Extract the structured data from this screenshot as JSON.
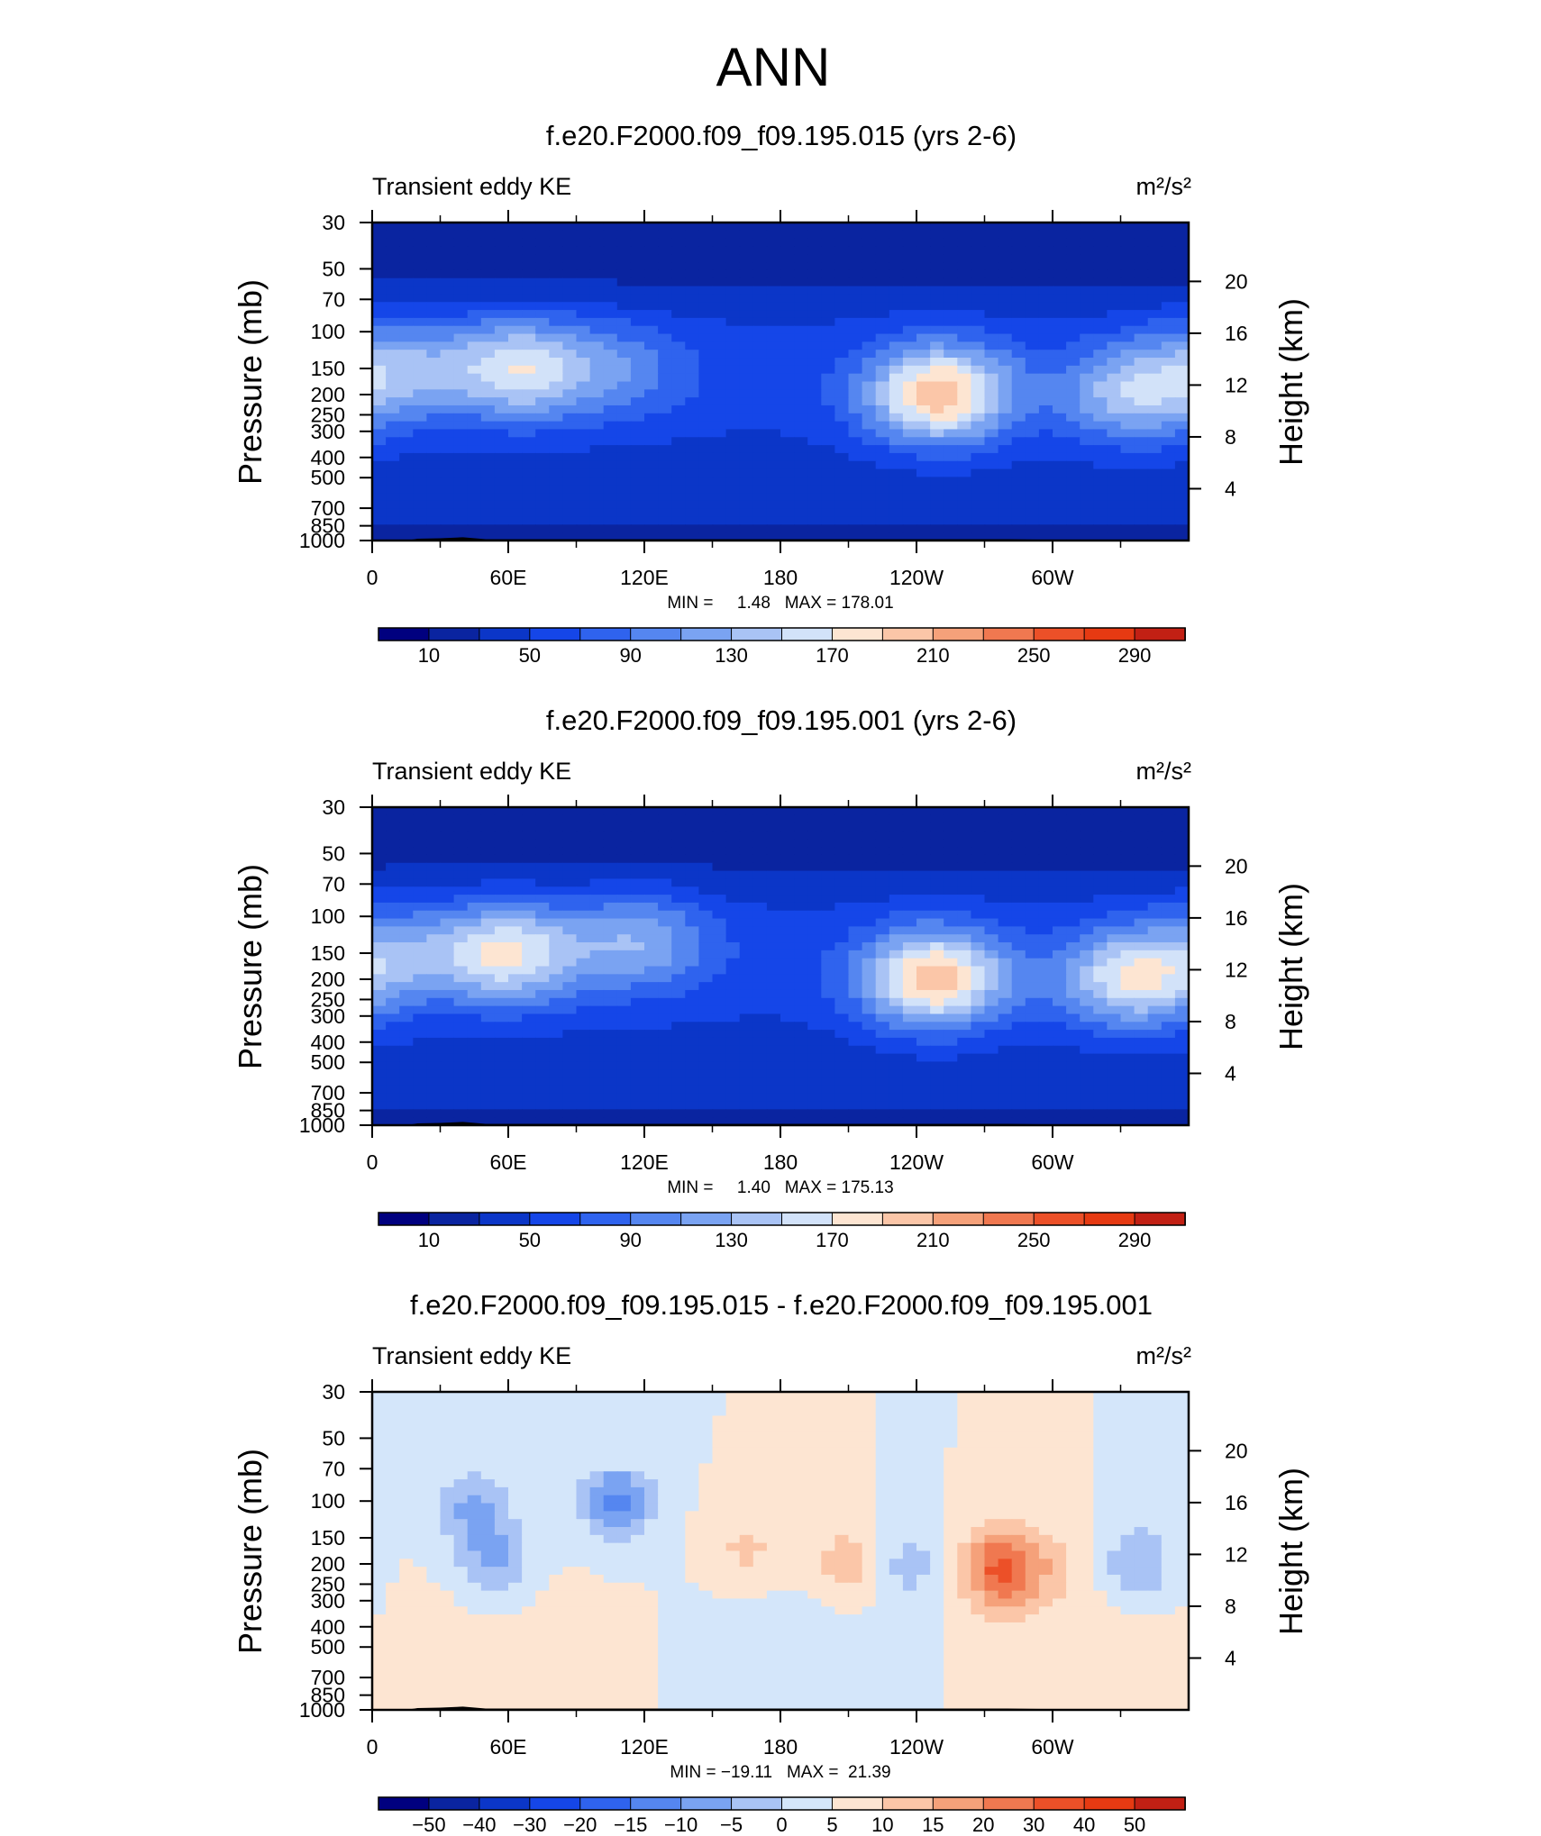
{
  "supertitle": "ANN",
  "colors": {
    "abs_levels": [
      "#00007f",
      "#0a24a0",
      "#0b36c8",
      "#1546e8",
      "#2f63ee",
      "#5586f0",
      "#7aa3f2",
      "#a9c3f5",
      "#d2e2f9",
      "#fde5d2",
      "#fbc6a8",
      "#f5a17a",
      "#f07850",
      "#ec5028",
      "#e63a12",
      "#c22014",
      "#8b0a06"
    ],
    "diff_levels": [
      "#00007f",
      "#0a24a0",
      "#0b36c8",
      "#1546e8",
      "#2f63ee",
      "#5586f0",
      "#7aa3f2",
      "#a9c3f5",
      "#d4e6fa",
      "#fde5d2",
      "#fbc6a8",
      "#f5a17a",
      "#f07850",
      "#ec5028",
      "#e63a12",
      "#c22014",
      "#8b0a06"
    ]
  },
  "chart_data": [
    {
      "type": "heatmap",
      "title": "f.e20.F2000.f09_f09.195.015 (yrs 2-6)",
      "left_label": "Transient eddy KE",
      "units_label": "m²/s²",
      "ylabel": "Pressure (mb)",
      "ylabel_right": "Height (km)",
      "xticks": [
        "0",
        "60E",
        "120E",
        "180",
        "120W",
        "60W"
      ],
      "yticks_pressure": [
        "30",
        "50",
        "70",
        "100",
        "150",
        "200",
        "250",
        "300",
        "400",
        "500",
        "700",
        "850",
        "1000"
      ],
      "yticks_height": [
        "20",
        "16",
        "12",
        "8",
        "4"
      ],
      "stats": "MIN =     1.48   MAX = 178.01",
      "colorbar_labels": [
        "10",
        "50",
        "90",
        "130",
        "170",
        "210",
        "250",
        "290"
      ],
      "levels": [
        10,
        30,
        50,
        70,
        90,
        110,
        130,
        150,
        170,
        190,
        210,
        230,
        250,
        270,
        290
      ],
      "min": 1.48,
      "max": 178.01,
      "features": [
        {
          "lon": 65,
          "pressure": 150,
          "peak": 135
        },
        {
          "lon": 12,
          "pressure": 150,
          "peak": 95
        },
        {
          "lon": 110,
          "pressure": 150,
          "peak": 72
        },
        {
          "lon": 250,
          "pressure": 200,
          "peak": 178
        },
        {
          "lon": 335,
          "pressure": 200,
          "peak": 115
        }
      ]
    },
    {
      "type": "heatmap",
      "title": "f.e20.F2000.f09_f09.195.001 (yrs 2-6)",
      "left_label": "Transient eddy KE",
      "units_label": "m²/s²",
      "ylabel": "Pressure (mb)",
      "ylabel_right": "Height (km)",
      "xticks": [
        "0",
        "60E",
        "120E",
        "180",
        "120W",
        "60W"
      ],
      "yticks_pressure": [
        "30",
        "50",
        "70",
        "100",
        "150",
        "200",
        "250",
        "300",
        "400",
        "500",
        "700",
        "850",
        "1000"
      ],
      "yticks_height": [
        "20",
        "16",
        "12",
        "8",
        "4"
      ],
      "stats": "MIN =     1.40   MAX = 175.13",
      "colorbar_labels": [
        "10",
        "50",
        "90",
        "130",
        "170",
        "210",
        "250",
        "290"
      ],
      "levels": [
        10,
        30,
        50,
        70,
        90,
        110,
        130,
        150,
        170,
        190,
        210,
        230,
        250,
        270,
        290
      ],
      "min": 1.4,
      "max": 175.13,
      "features": [
        {
          "lon": 60,
          "pressure": 150,
          "peak": 142
        },
        {
          "lon": 12,
          "pressure": 150,
          "peak": 80
        },
        {
          "lon": 118,
          "pressure": 130,
          "peak": 100
        },
        {
          "lon": 248,
          "pressure": 200,
          "peak": 175
        },
        {
          "lon": 335,
          "pressure": 200,
          "peak": 140
        }
      ]
    },
    {
      "type": "heatmap",
      "title": "f.e20.F2000.f09_f09.195.015 - f.e20.F2000.f09_f09.195.001",
      "left_label": "Transient eddy KE",
      "units_label": "m²/s²",
      "ylabel": "Pressure (mb)",
      "ylabel_right": "Height (km)",
      "xticks": [
        "0",
        "60E",
        "120E",
        "180",
        "120W",
        "60W"
      ],
      "yticks_pressure": [
        "30",
        "50",
        "70",
        "100",
        "150",
        "200",
        "250",
        "300",
        "400",
        "500",
        "700",
        "850",
        "1000"
      ],
      "yticks_height": [
        "20",
        "16",
        "12",
        "8",
        "4"
      ],
      "stats": "MIN = −19.11   MAX =  21.39",
      "colorbar_labels": [
        "−50",
        "−40",
        "−30",
        "−20",
        "−15",
        "−10",
        "−5",
        "0",
        "5",
        "10",
        "15",
        "20",
        "30",
        "40",
        "50"
      ],
      "levels": [
        -50,
        -40,
        -30,
        -20,
        -15,
        -10,
        -5,
        0,
        5,
        10,
        15,
        20,
        30,
        40,
        50
      ],
      "min": -19.11,
      "max": 21.39,
      "features": [
        {
          "lon": 45,
          "pressure": 110,
          "peak": -11
        },
        {
          "lon": 55,
          "pressure": 200,
          "peak": -10
        },
        {
          "lon": 108,
          "pressure": 100,
          "peak": -16
        },
        {
          "lon": 165,
          "pressure": 170,
          "peak": 6
        },
        {
          "lon": 210,
          "pressure": 200,
          "peak": 8
        },
        {
          "lon": 236,
          "pressure": 200,
          "peak": -7
        },
        {
          "lon": 277,
          "pressure": 210,
          "peak": 21
        },
        {
          "lon": 338,
          "pressure": 200,
          "peak": -10
        },
        {
          "lon": 300,
          "pressure": 200,
          "peak": 6
        }
      ]
    }
  ]
}
